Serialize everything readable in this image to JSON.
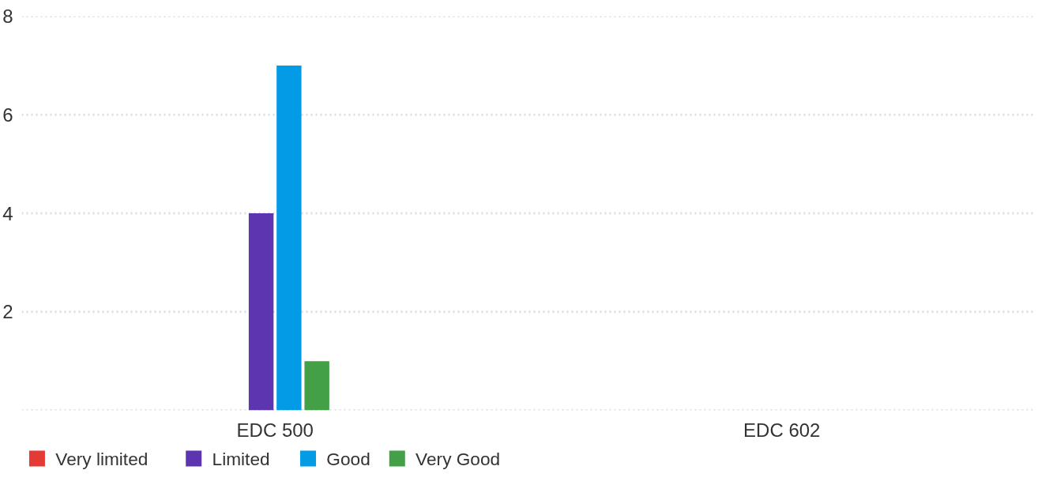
{
  "chart_data": {
    "type": "bar",
    "categories": [
      "EDC 500",
      "EDC 602"
    ],
    "series": [
      {
        "name": "Very limited",
        "color": "#e53935",
        "values": [
          0,
          0
        ]
      },
      {
        "name": "Limited",
        "color": "#5e35b1",
        "values": [
          4,
          0
        ]
      },
      {
        "name": "Good",
        "color": "#039be5",
        "values": [
          7,
          0
        ]
      },
      {
        "name": "Very Good",
        "color": "#43a047",
        "values": [
          1,
          0
        ]
      }
    ],
    "ylim": [
      0,
      8
    ],
    "yticks": [
      {
        "value": 0,
        "label": null
      },
      2,
      4,
      6,
      8
    ],
    "grid": "y",
    "legend": "bottom left"
  }
}
